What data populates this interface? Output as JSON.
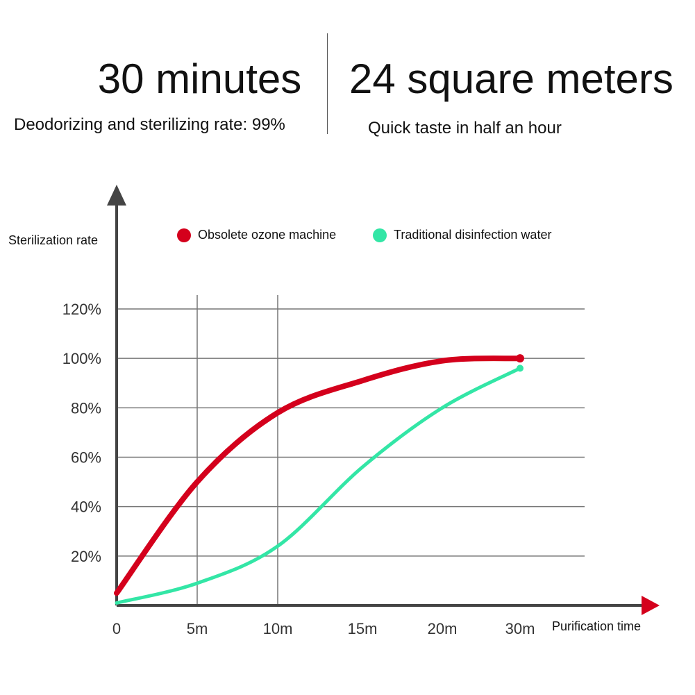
{
  "header": {
    "left_title": "30 minutes",
    "left_subtitle": "Deodorizing and sterilizing rate: 99%",
    "right_title": "24 square meters",
    "right_subtitle": "Quick taste in half an hour"
  },
  "colors": {
    "red": "#d4001c",
    "green": "#33e6a6",
    "grid": "#777777",
    "axis": "#444444"
  },
  "chart_data": {
    "type": "line",
    "xlabel": "Purification time",
    "ylabel": "Sterilization rate",
    "categories": [
      "0",
      "5m",
      "10m",
      "15m",
      "20m",
      "30m"
    ],
    "y_ticks": [
      "20%",
      "40%",
      "60%",
      "80%",
      "100%",
      "120%"
    ],
    "y_tick_values": [
      20,
      40,
      60,
      80,
      100,
      120
    ],
    "ylim": [
      0,
      120
    ],
    "grid": true,
    "legend_position": "top",
    "series": [
      {
        "name": "Obsolete ozone machine",
        "color": "#d4001c",
        "x": [
          0,
          1,
          2,
          3,
          4,
          5
        ],
        "values": [
          5,
          50,
          78,
          91,
          99,
          100
        ]
      },
      {
        "name": "Traditional disinfection water",
        "color": "#33e6a6",
        "x": [
          0,
          1,
          2,
          3,
          4,
          5
        ],
        "values": [
          1,
          9,
          24,
          56,
          80,
          96
        ]
      }
    ]
  }
}
